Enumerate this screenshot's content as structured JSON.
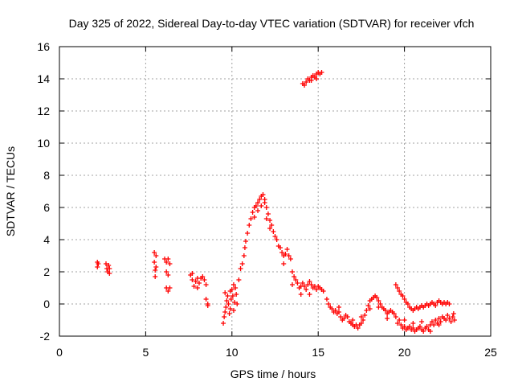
{
  "chart_data": {
    "type": "scatter",
    "title": "Day 325 of 2022, Sidereal Day-to-day VTEC variation (SDTVAR) for receiver vfch",
    "xlabel": "GPS time / hours",
    "ylabel": "SDTVAR / TECUs",
    "xlim": [
      0,
      25
    ],
    "ylim": [
      -2,
      16
    ],
    "xticks": [
      "0",
      "5",
      "10",
      "15",
      "20",
      "25"
    ],
    "yticks": [
      "-2",
      "0",
      "2",
      "4",
      "6",
      "8",
      "10",
      "12",
      "14",
      "16"
    ],
    "grid": true,
    "marker": "plus",
    "color": "#ff0000",
    "series": [
      {
        "name": "SDTVAR",
        "points": [
          [
            2.2,
            2.6
          ],
          [
            2.2,
            2.3
          ],
          [
            2.25,
            2.5
          ],
          [
            2.7,
            2.5
          ],
          [
            2.75,
            2.2
          ],
          [
            2.8,
            2.0
          ],
          [
            2.85,
            2.4
          ],
          [
            2.9,
            1.9
          ],
          [
            2.9,
            2.2
          ],
          [
            5.5,
            3.2
          ],
          [
            5.5,
            2.6
          ],
          [
            5.55,
            2.1
          ],
          [
            5.55,
            1.7
          ],
          [
            5.6,
            3.0
          ],
          [
            5.6,
            2.3
          ],
          [
            6.1,
            2.8
          ],
          [
            6.2,
            2.6
          ],
          [
            6.3,
            2.8
          ],
          [
            6.4,
            2.5
          ],
          [
            6.2,
            1.0
          ],
          [
            6.3,
            0.8
          ],
          [
            6.4,
            1.0
          ],
          [
            6.2,
            2.0
          ],
          [
            6.3,
            1.8
          ],
          [
            7.6,
            1.8
          ],
          [
            7.7,
            1.5
          ],
          [
            7.8,
            1.1
          ],
          [
            7.9,
            1.4
          ],
          [
            8.0,
            1.0
          ],
          [
            8.1,
            1.3
          ],
          [
            8.2,
            1.6
          ],
          [
            8.3,
            1.7
          ],
          [
            8.4,
            1.5
          ],
          [
            8.5,
            1.2
          ],
          [
            8.5,
            0.3
          ],
          [
            8.6,
            0.0
          ],
          [
            8.6,
            -0.1
          ],
          [
            7.7,
            1.9
          ],
          [
            8.0,
            1.6
          ],
          [
            9.5,
            -1.2
          ],
          [
            9.55,
            -0.8
          ],
          [
            9.6,
            -0.5
          ],
          [
            9.65,
            -0.2
          ],
          [
            9.7,
            0.2
          ],
          [
            9.75,
            0.5
          ],
          [
            9.8,
            0.0
          ],
          [
            9.85,
            -0.6
          ],
          [
            9.9,
            -0.3
          ],
          [
            9.95,
            0.3
          ],
          [
            10.0,
            0.9
          ],
          [
            10.05,
            0.5
          ],
          [
            10.1,
            -0.4
          ],
          [
            10.15,
            0.1
          ],
          [
            10.2,
            1.0
          ],
          [
            10.25,
            0.6
          ],
          [
            10.3,
            0.0
          ],
          [
            9.6,
            0.7
          ],
          [
            9.9,
            0.8
          ],
          [
            10.1,
            1.2
          ],
          [
            10.4,
            1.5
          ],
          [
            10.5,
            2.2
          ],
          [
            10.6,
            2.5
          ],
          [
            10.7,
            3.0
          ],
          [
            10.75,
            3.5
          ],
          [
            10.8,
            3.9
          ],
          [
            10.9,
            4.4
          ],
          [
            11.0,
            4.9
          ],
          [
            11.1,
            5.3
          ],
          [
            11.2,
            5.7
          ],
          [
            11.3,
            6.0
          ],
          [
            11.4,
            6.1
          ],
          [
            11.5,
            6.3
          ],
          [
            11.6,
            6.5
          ],
          [
            11.7,
            6.7
          ],
          [
            11.8,
            6.8
          ],
          [
            11.9,
            6.5
          ],
          [
            12.0,
            6.0
          ],
          [
            12.1,
            5.6
          ],
          [
            12.2,
            5.2
          ],
          [
            12.3,
            4.9
          ],
          [
            11.3,
            5.4
          ],
          [
            11.5,
            5.8
          ],
          [
            11.7,
            6.1
          ],
          [
            11.9,
            6.3
          ],
          [
            12.0,
            5.3
          ],
          [
            12.2,
            4.7
          ],
          [
            12.4,
            4.5
          ],
          [
            12.5,
            4.2
          ],
          [
            12.6,
            4.0
          ],
          [
            12.7,
            3.6
          ],
          [
            12.8,
            3.5
          ],
          [
            12.9,
            3.2
          ],
          [
            13.0,
            3.0
          ],
          [
            13.1,
            3.1
          ],
          [
            13.2,
            3.4
          ],
          [
            13.3,
            3.0
          ],
          [
            13.4,
            2.8
          ],
          [
            13.5,
            2.0
          ],
          [
            13.6,
            1.7
          ],
          [
            13.7,
            1.5
          ],
          [
            13.8,
            1.3
          ],
          [
            13.9,
            1.0
          ],
          [
            14.0,
            1.1
          ],
          [
            14.1,
            1.3
          ],
          [
            14.2,
            1.1
          ],
          [
            14.3,
            0.9
          ],
          [
            14.4,
            1.2
          ],
          [
            14.5,
            1.4
          ],
          [
            14.6,
            1.2
          ],
          [
            14.7,
            1.0
          ],
          [
            14.8,
            1.1
          ],
          [
            14.9,
            0.9
          ],
          [
            15.0,
            1.1
          ],
          [
            15.1,
            1.0
          ],
          [
            15.2,
            0.9
          ],
          [
            15.3,
            0.8
          ],
          [
            13.0,
            2.5
          ],
          [
            13.5,
            1.2
          ],
          [
            14.0,
            0.6
          ],
          [
            14.5,
            0.6
          ],
          [
            14.1,
            13.7
          ],
          [
            14.2,
            13.6
          ],
          [
            14.3,
            13.8
          ],
          [
            14.4,
            14.0
          ],
          [
            14.5,
            13.9
          ],
          [
            14.6,
            14.1
          ],
          [
            14.7,
            14.2
          ],
          [
            14.8,
            14.1
          ],
          [
            14.9,
            14.3
          ],
          [
            15.0,
            14.4
          ],
          [
            15.1,
            14.3
          ],
          [
            15.2,
            14.4
          ],
          [
            14.6,
            13.9
          ],
          [
            14.9,
            14.0
          ],
          [
            15.5,
            0.3
          ],
          [
            15.6,
            0.0
          ],
          [
            15.7,
            -0.2
          ],
          [
            15.8,
            -0.3
          ],
          [
            15.9,
            -0.5
          ],
          [
            16.0,
            -0.4
          ],
          [
            16.1,
            -0.6
          ],
          [
            16.2,
            -0.5
          ],
          [
            16.3,
            -0.8
          ],
          [
            16.4,
            -1.0
          ],
          [
            16.5,
            -0.9
          ],
          [
            16.6,
            -0.7
          ],
          [
            16.7,
            -0.8
          ],
          [
            16.8,
            -1.1
          ],
          [
            16.9,
            -1.2
          ],
          [
            17.0,
            -1.3
          ],
          [
            17.1,
            -1.4
          ],
          [
            17.2,
            -1.3
          ],
          [
            17.3,
            -1.5
          ],
          [
            17.4,
            -1.3
          ],
          [
            17.5,
            -1.2
          ],
          [
            17.6,
            -1.0
          ],
          [
            17.7,
            -0.7
          ],
          [
            17.8,
            -0.4
          ],
          [
            17.9,
            -0.1
          ],
          [
            18.0,
            0.2
          ],
          [
            18.1,
            0.3
          ],
          [
            18.2,
            0.4
          ],
          [
            18.3,
            0.5
          ],
          [
            18.4,
            0.4
          ],
          [
            18.5,
            0.2
          ],
          [
            18.6,
            0.0
          ],
          [
            18.7,
            -0.2
          ],
          [
            18.8,
            -0.3
          ],
          [
            18.9,
            -0.4
          ],
          [
            19.0,
            -0.6
          ],
          [
            19.1,
            -0.5
          ],
          [
            19.2,
            -0.4
          ],
          [
            19.3,
            -0.5
          ],
          [
            19.4,
            -0.6
          ],
          [
            19.5,
            -0.8
          ],
          [
            16.2,
            -0.2
          ],
          [
            17.0,
            -1.0
          ],
          [
            17.5,
            -0.8
          ],
          [
            18.0,
            -0.3
          ],
          [
            18.5,
            -0.2
          ],
          [
            19.0,
            -0.9
          ],
          [
            19.6,
            -1.2
          ],
          [
            19.7,
            -1.0
          ],
          [
            19.8,
            -1.3
          ],
          [
            19.9,
            -1.5
          ],
          [
            20.0,
            -1.4
          ],
          [
            20.1,
            -1.6
          ],
          [
            20.2,
            -1.5
          ],
          [
            20.3,
            -1.4
          ],
          [
            20.4,
            -1.6
          ],
          [
            20.5,
            -1.5
          ],
          [
            20.6,
            -1.7
          ],
          [
            20.7,
            -1.6
          ],
          [
            20.8,
            -1.5
          ],
          [
            20.9,
            -1.4
          ],
          [
            21.0,
            -1.6
          ],
          [
            21.1,
            -1.7
          ],
          [
            21.2,
            -1.5
          ],
          [
            21.3,
            -1.4
          ],
          [
            21.4,
            -1.6
          ],
          [
            21.5,
            -1.3
          ],
          [
            21.6,
            -1.1
          ],
          [
            21.7,
            -1.3
          ],
          [
            21.8,
            -1.0
          ],
          [
            21.9,
            -1.2
          ],
          [
            22.0,
            -0.9
          ],
          [
            22.1,
            -1.1
          ],
          [
            22.2,
            -0.8
          ],
          [
            22.3,
            -0.9
          ],
          [
            22.4,
            -1.0
          ],
          [
            22.5,
            -0.7
          ],
          [
            22.6,
            -0.9
          ],
          [
            22.7,
            -1.1
          ],
          [
            22.8,
            -0.8
          ],
          [
            22.85,
            -0.6
          ],
          [
            22.9,
            -1.0
          ],
          [
            20.0,
            -1.0
          ],
          [
            20.5,
            -1.2
          ],
          [
            21.0,
            -1.1
          ],
          [
            21.5,
            -1.7
          ],
          [
            22.0,
            -1.3
          ],
          [
            19.5,
            1.2
          ],
          [
            19.6,
            1.0
          ],
          [
            19.7,
            0.8
          ],
          [
            19.8,
            0.6
          ],
          [
            19.9,
            0.5
          ],
          [
            20.0,
            0.3
          ],
          [
            20.1,
            0.1
          ],
          [
            20.2,
            0.0
          ],
          [
            20.3,
            -0.2
          ],
          [
            20.4,
            -0.3
          ],
          [
            20.5,
            -0.4
          ],
          [
            20.6,
            -0.3
          ],
          [
            20.7,
            -0.2
          ],
          [
            20.8,
            -0.3
          ],
          [
            20.9,
            -0.2
          ],
          [
            21.0,
            -0.1
          ],
          [
            21.1,
            -0.2
          ],
          [
            21.2,
            -0.1
          ],
          [
            21.3,
            0.0
          ],
          [
            21.4,
            -0.1
          ],
          [
            21.5,
            0.0
          ],
          [
            21.6,
            0.1
          ],
          [
            21.7,
            0.0
          ],
          [
            21.8,
            -0.1
          ],
          [
            21.9,
            0.1
          ],
          [
            22.0,
            0.2
          ],
          [
            22.1,
            0.1
          ],
          [
            22.2,
            0.0
          ],
          [
            22.3,
            0.1
          ],
          [
            22.4,
            0.0
          ],
          [
            22.5,
            0.1
          ],
          [
            22.6,
            0.0
          ]
        ]
      }
    ]
  }
}
